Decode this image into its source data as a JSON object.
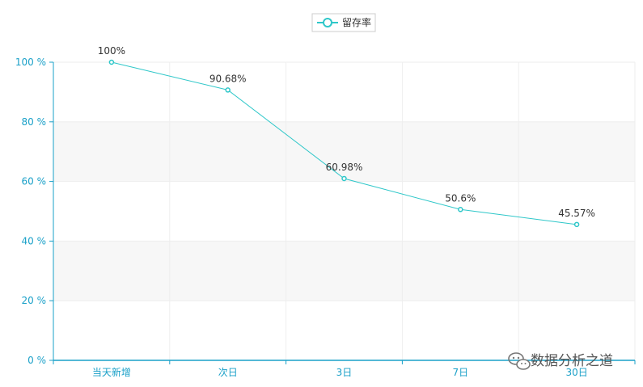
{
  "chart_data": {
    "type": "line",
    "categories": [
      "当天新增",
      "次日",
      "3日",
      "7日",
      "30日"
    ],
    "series": [
      {
        "name": "留存率",
        "values": [
          100,
          90.68,
          60.98,
          50.6,
          45.57
        ],
        "labels": [
          "100%",
          "90.68%",
          "60.98%",
          "50.6%",
          "45.57%"
        ],
        "color": "#2ec7c9"
      }
    ],
    "ylim": [
      0,
      100
    ],
    "y_ticks": [
      0,
      20,
      40,
      60,
      80,
      100
    ],
    "y_tick_labels": [
      "0 %",
      "20 %",
      "40 %",
      "60 %",
      "80 %",
      "100 %"
    ],
    "legend_position": "top-center",
    "grid": true,
    "axis_color": "#1aa0c8",
    "band_color": "#f7f7f7"
  },
  "watermark": {
    "text": "数据分析之道",
    "icon": "wechat-icon"
  }
}
